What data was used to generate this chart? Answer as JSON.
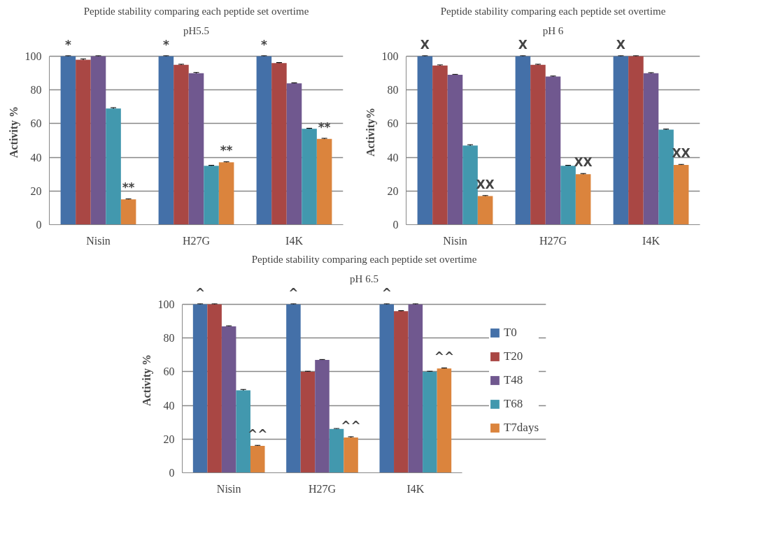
{
  "chart_data": [
    {
      "type": "bar",
      "title": "Peptide stability comparing each peptide set overtime",
      "subtitle": "pH5.5",
      "ylabel": "Activity %",
      "categories": [
        "Nisin",
        "H27G",
        "I4K"
      ],
      "ylim": [
        0,
        100
      ],
      "yticks": [
        0,
        20,
        40,
        60,
        80,
        100
      ],
      "grid": "y",
      "series": [
        {
          "color": "#4470a8",
          "values": [
            100,
            100,
            100
          ],
          "errors": [
            0.3,
            0.3,
            0.3
          ]
        },
        {
          "color": "#a94744",
          "values": [
            98,
            95,
            96
          ],
          "errors": [
            0.5,
            0.3,
            0.3
          ]
        },
        {
          "color": "#70588f",
          "values": [
            100,
            90,
            84
          ],
          "errors": [
            0.3,
            0.4,
            0.3
          ]
        },
        {
          "color": "#4298ae",
          "values": [
            69,
            35,
            57
          ],
          "errors": [
            0.5,
            0.3,
            0.3
          ]
        },
        {
          "color": "#db843d",
          "values": [
            15,
            37,
            51
          ],
          "errors": [
            0.3,
            0.4,
            0.3
          ]
        }
      ],
      "annotations": [
        "*",
        "*",
        "*",
        "**",
        "**",
        "**"
      ]
    },
    {
      "type": "bar",
      "title": "Peptide stability comparing each peptide set overtime",
      "subtitle": "pH 6",
      "ylabel": "Activity%",
      "categories": [
        "Nisin",
        "H27G",
        "I4K"
      ],
      "ylim": [
        0,
        100
      ],
      "yticks": [
        0,
        20,
        40,
        60,
        80,
        100
      ],
      "grid": "y",
      "series": [
        {
          "color": "#4470a8",
          "values": [
            100,
            100,
            100
          ],
          "errors": [
            0.3,
            0.3,
            0.3
          ]
        },
        {
          "color": "#a94744",
          "values": [
            94.5,
            95,
            100
          ],
          "errors": [
            0.4,
            0.3,
            0.3
          ]
        },
        {
          "color": "#70588f",
          "values": [
            89,
            88,
            90
          ],
          "errors": [
            0.3,
            0.3,
            0.3
          ]
        },
        {
          "color": "#4298ae",
          "values": [
            47,
            35,
            56.5
          ],
          "errors": [
            0.5,
            0.3,
            0.3
          ]
        },
        {
          "color": "#db843d",
          "values": [
            17,
            30,
            35.5
          ],
          "errors": [
            0.3,
            0.4,
            0.3
          ]
        }
      ],
      "annotations": [
        "X",
        "X",
        "X",
        "XX",
        "XX",
        "XX"
      ]
    },
    {
      "type": "bar",
      "title": "Peptide stability comparing each peptide set overtime",
      "subtitle": "pH 6.5",
      "ylabel": "Activity %",
      "categories": [
        "Nisin",
        "H27G",
        "I4K"
      ],
      "ylim": [
        0,
        100
      ],
      "yticks": [
        0,
        20,
        40,
        60,
        80,
        100
      ],
      "grid": "y",
      "legend": "right",
      "series": [
        {
          "name": "T0",
          "color": "#4470a8",
          "values": [
            100,
            100,
            100
          ],
          "errors": [
            0.3,
            0.3,
            0.3
          ]
        },
        {
          "name": "T20",
          "color": "#a94744",
          "values": [
            100,
            60,
            96
          ],
          "errors": [
            0.3,
            0.3,
            0.3
          ]
        },
        {
          "name": "T48",
          "color": "#70588f",
          "values": [
            87,
            67,
            100
          ],
          "errors": [
            0.3,
            0.3,
            0.3
          ]
        },
        {
          "name": "T68",
          "color": "#4298ae",
          "values": [
            49,
            26,
            60
          ],
          "errors": [
            0.5,
            0.3,
            0.3
          ]
        },
        {
          "name": "T7days",
          "color": "#db843d",
          "values": [
            16,
            21,
            62
          ],
          "errors": [
            0.3,
            0.4,
            0.3
          ]
        }
      ],
      "annotations": [
        "^",
        "^",
        "^",
        "^^",
        "^^",
        "^^"
      ]
    }
  ]
}
